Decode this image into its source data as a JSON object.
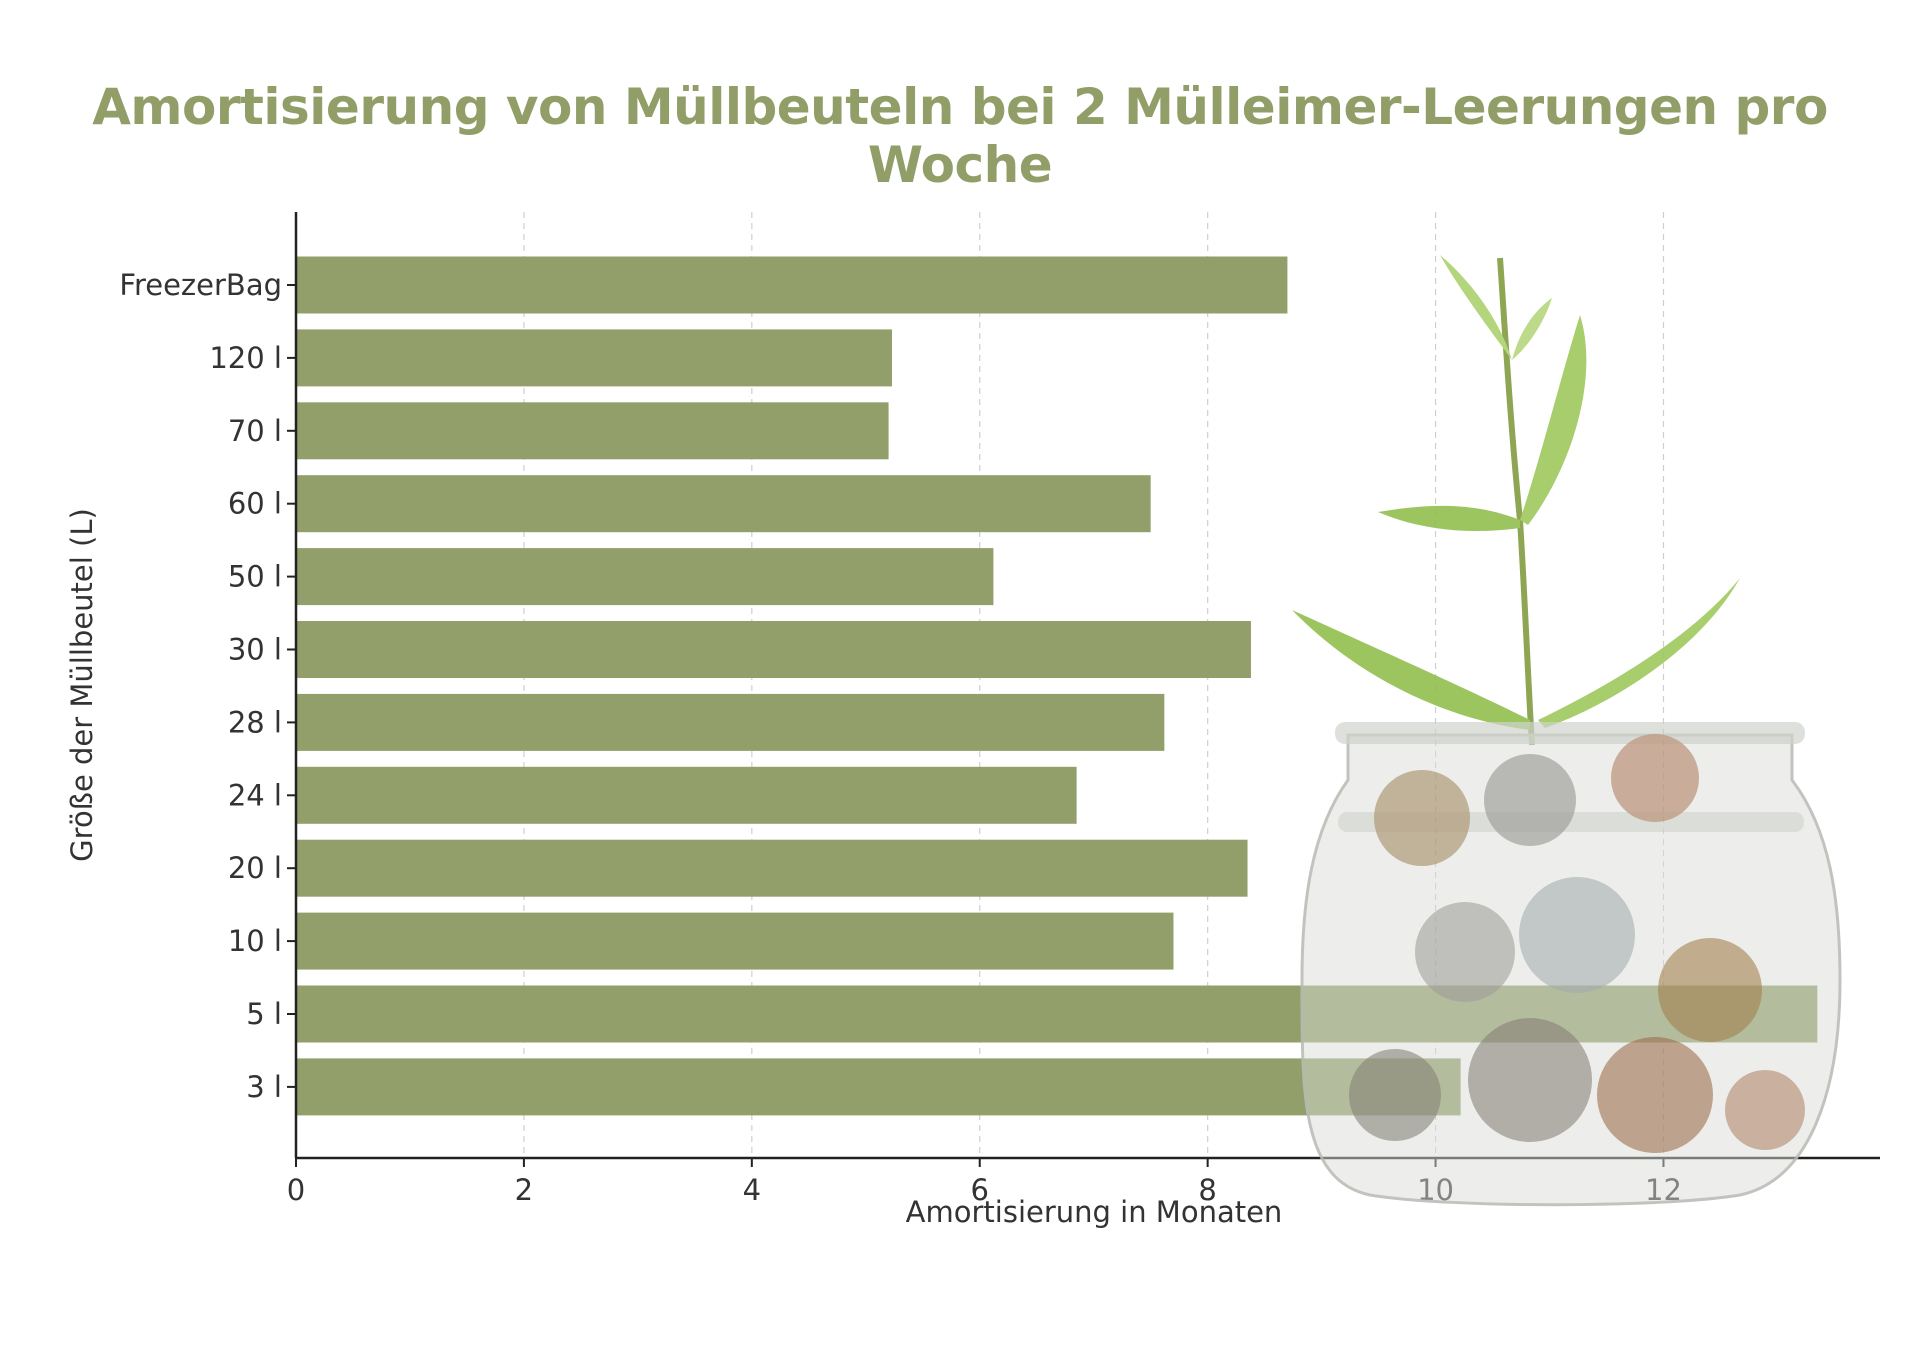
{
  "chart_data": {
    "type": "bar",
    "orientation": "horizontal",
    "title": "Amortisierung von Müllbeuteln bei 2 Mülleimer-Leerungen pro Woche",
    "xlabel": "Amortisierung in Monaten",
    "ylabel": "Größe der Müllbeutel (L)",
    "categories": [
      "FreezerBag",
      "120 l",
      "70 l",
      "60 l",
      "50 l",
      "30 l",
      "28 l",
      "24 l",
      "20 l",
      "10 l",
      "5 l",
      "3 l"
    ],
    "values": [
      8.7,
      5.23,
      5.2,
      7.5,
      6.12,
      8.38,
      7.62,
      6.85,
      8.35,
      7.7,
      13.35,
      10.22
    ],
    "xlim": [
      0,
      13.9
    ],
    "xticks": [
      0,
      2,
      4,
      6,
      8,
      10,
      12
    ],
    "grid": true,
    "bar_color": "#939f6b",
    "title_color": "#929e68"
  },
  "decoration": {
    "image_name": "plant-in-coin-jar-icon"
  }
}
